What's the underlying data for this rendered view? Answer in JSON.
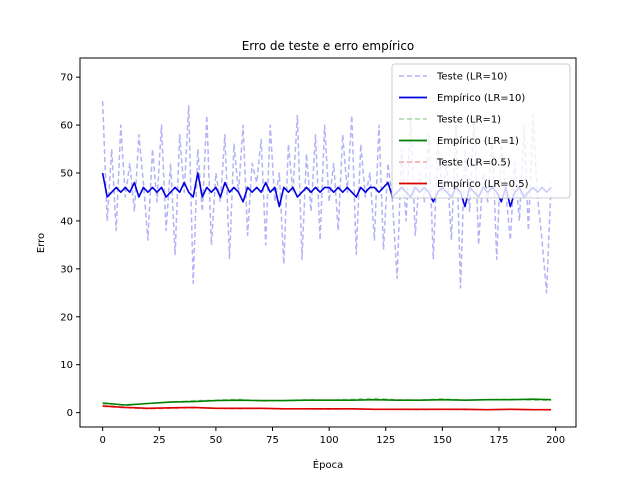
{
  "chart_data": {
    "type": "line",
    "title": "Erro de teste e erro empírico",
    "xlabel": "Época",
    "ylabel": "Erro",
    "xlim": [
      -10,
      209
    ],
    "ylim": [
      -3,
      74
    ],
    "xticks": [
      0,
      25,
      50,
      75,
      100,
      125,
      150,
      175,
      200
    ],
    "yticks": [
      0,
      10,
      20,
      30,
      40,
      50,
      60,
      70
    ],
    "grid": false,
    "legend_position": "top-right",
    "series": [
      {
        "name": "Teste (LR=10)",
        "color": "#b3b3f5",
        "style": "dashed",
        "x": [
          0,
          2,
          4,
          6,
          8,
          10,
          12,
          14,
          16,
          18,
          20,
          22,
          24,
          26,
          28,
          30,
          32,
          34,
          36,
          38,
          40,
          42,
          44,
          46,
          48,
          50,
          52,
          54,
          56,
          58,
          60,
          62,
          64,
          66,
          68,
          70,
          72,
          74,
          76,
          78,
          80,
          82,
          84,
          86,
          88,
          90,
          92,
          94,
          96,
          98,
          100,
          102,
          104,
          106,
          108,
          110,
          112,
          114,
          116,
          118,
          120,
          122,
          124,
          126,
          128,
          130,
          132,
          134,
          136,
          138,
          140,
          142,
          144,
          146,
          148,
          150,
          152,
          154,
          156,
          158,
          160,
          162,
          164,
          166,
          168,
          170,
          172,
          174,
          176,
          178,
          180,
          182,
          184,
          186,
          188,
          190,
          192,
          194,
          196,
          198
        ],
        "values": [
          65,
          40,
          55,
          38,
          60,
          45,
          52,
          42,
          58,
          48,
          36,
          55,
          44,
          60,
          38,
          52,
          33,
          58,
          46,
          64,
          27,
          55,
          42,
          62,
          35,
          50,
          44,
          58,
          32,
          56,
          46,
          60,
          37,
          52,
          48,
          57,
          35,
          60,
          44,
          50,
          31,
          56,
          46,
          62,
          32,
          54,
          42,
          58,
          36,
          60,
          44,
          52,
          38,
          58,
          46,
          62,
          33,
          56,
          45,
          50,
          36,
          60,
          34,
          52,
          44,
          28,
          55,
          40,
          62,
          37,
          50,
          44,
          58,
          32,
          56,
          46,
          52,
          36,
          60,
          26,
          55,
          42,
          62,
          35,
          50,
          44,
          58,
          32,
          56,
          46,
          36,
          52,
          40,
          60,
          38,
          62,
          45,
          36,
          25,
          48
        ]
      },
      {
        "name": "Empírico (LR=10)",
        "color": "#0000dd",
        "style": "solid",
        "x": [
          0,
          2,
          4,
          6,
          8,
          10,
          12,
          14,
          16,
          18,
          20,
          22,
          24,
          26,
          28,
          30,
          32,
          34,
          36,
          38,
          40,
          42,
          44,
          46,
          48,
          50,
          52,
          54,
          56,
          58,
          60,
          62,
          64,
          66,
          68,
          70,
          72,
          74,
          76,
          78,
          80,
          82,
          84,
          86,
          88,
          90,
          92,
          94,
          96,
          98,
          100,
          102,
          104,
          106,
          108,
          110,
          112,
          114,
          116,
          118,
          120,
          122,
          124,
          126,
          128,
          130,
          132,
          134,
          136,
          138,
          140,
          142,
          144,
          146,
          148,
          150,
          152,
          154,
          156,
          158,
          160,
          162,
          164,
          166,
          168,
          170,
          172,
          174,
          176,
          178,
          180,
          182,
          184,
          186,
          188,
          190,
          192,
          194,
          196,
          198
        ],
        "values": [
          50,
          45,
          46,
          47,
          46,
          47,
          46,
          48,
          45,
          47,
          46,
          47,
          46,
          47,
          45,
          46,
          47,
          46,
          48,
          46,
          45,
          50,
          45,
          47,
          46,
          47,
          45,
          48,
          46,
          47,
          46,
          44,
          47,
          46,
          47,
          46,
          48,
          46,
          47,
          43,
          47,
          46,
          47,
          45,
          46,
          47,
          46,
          47,
          46,
          47,
          47,
          46,
          47,
          46,
          47,
          46,
          45,
          47,
          46,
          47,
          47,
          46,
          47,
          48,
          45,
          46,
          47,
          46,
          45,
          47,
          46,
          47,
          46,
          44,
          46,
          47,
          46,
          45,
          47,
          46,
          43,
          47,
          46,
          45,
          47,
          46,
          47,
          46,
          44,
          47,
          43,
          46,
          47,
          45,
          46,
          47,
          46,
          47,
          46,
          47
        ]
      },
      {
        "name": "Teste (LR=1)",
        "color": "#a5d8a5",
        "style": "dashed",
        "x": [
          0,
          10,
          20,
          30,
          40,
          50,
          60,
          70,
          80,
          90,
          100,
          110,
          120,
          130,
          140,
          150,
          160,
          170,
          180,
          190,
          198
        ],
        "values": [
          1.8,
          1.5,
          1.9,
          2.2,
          2.5,
          2.6,
          2.8,
          2.4,
          2.5,
          2.7,
          2.6,
          2.8,
          3.0,
          2.7,
          2.6,
          2.9,
          2.6,
          2.7,
          2.8,
          2.6,
          2.6
        ]
      },
      {
        "name": "Empírico (LR=1)",
        "color": "#008000",
        "style": "solid",
        "x": [
          0,
          10,
          20,
          30,
          40,
          50,
          60,
          70,
          80,
          90,
          100,
          110,
          120,
          130,
          140,
          150,
          160,
          170,
          180,
          190,
          198
        ],
        "values": [
          2.0,
          1.6,
          1.9,
          2.2,
          2.3,
          2.5,
          2.6,
          2.5,
          2.5,
          2.6,
          2.6,
          2.6,
          2.7,
          2.6,
          2.6,
          2.7,
          2.6,
          2.7,
          2.7,
          2.8,
          2.7
        ]
      },
      {
        "name": "Teste (LR=0.5)",
        "color": "#f5a5a5",
        "style": "dashed",
        "x": [
          0,
          10,
          20,
          30,
          40,
          50,
          60,
          70,
          80,
          90,
          100,
          110,
          120,
          130,
          140,
          150,
          160,
          170,
          180,
          190,
          198
        ],
        "values": [
          1.3,
          1.0,
          0.8,
          0.9,
          1.0,
          0.9,
          0.8,
          0.9,
          0.8,
          0.8,
          0.7,
          0.8,
          0.7,
          0.7,
          0.6,
          0.7,
          0.6,
          0.6,
          0.7,
          0.6,
          0.6
        ]
      },
      {
        "name": "Empírico (LR=0.5)",
        "color": "#dd0000",
        "style": "solid",
        "x": [
          0,
          10,
          20,
          30,
          40,
          50,
          60,
          70,
          80,
          90,
          100,
          110,
          120,
          130,
          140,
          150,
          160,
          170,
          180,
          190,
          198
        ],
        "values": [
          1.4,
          1.1,
          0.9,
          1.0,
          1.1,
          0.9,
          0.9,
          0.9,
          0.8,
          0.8,
          0.8,
          0.8,
          0.7,
          0.7,
          0.7,
          0.7,
          0.7,
          0.6,
          0.7,
          0.6,
          0.6
        ]
      }
    ]
  }
}
